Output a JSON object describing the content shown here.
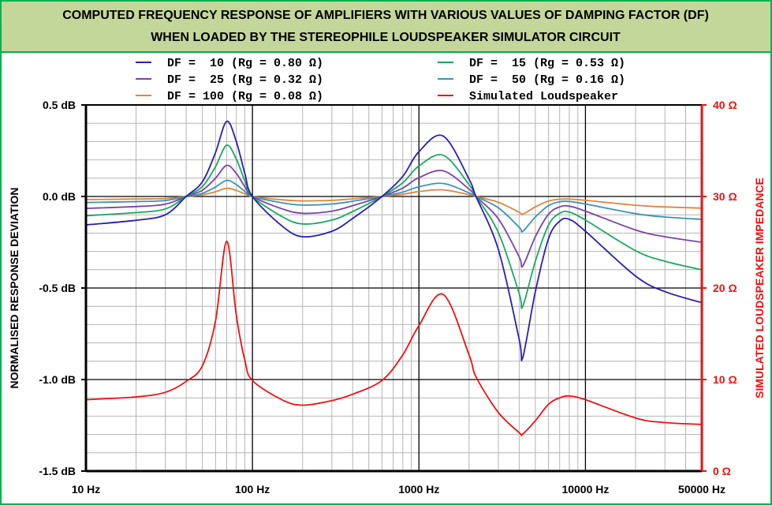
{
  "chart_data": {
    "type": "line",
    "title": [
      "COMPUTED FREQUENCY RESPONSE OF AMPLIFIERS WITH VARIOUS VALUES OF DAMPING FACTOR (DF)",
      "WHEN LOADED BY THE STEREOPHILE LOUDSPEAKER SIMULATOR CIRCUIT"
    ],
    "ylabel": "NORMALISED RESPONSE DEVIATION",
    "y2label": "SIMULATED LOUDSPEAKER IMPEDANCE",
    "xscale": "log",
    "xlim": [
      10,
      50000
    ],
    "ylim": [
      -1.5,
      0.5
    ],
    "y2lim": [
      0,
      40
    ],
    "grid": true,
    "legend_placement": "top",
    "x_ticks": [
      {
        "value": 10,
        "label": "10 Hz"
      },
      {
        "value": 100,
        "label": "100 Hz"
      },
      {
        "value": 1000,
        "label": "1000 Hz"
      },
      {
        "value": 10000,
        "label": "10000 Hz"
      },
      {
        "value": 50000,
        "label": "50000 Hz"
      }
    ],
    "y_ticks": [
      {
        "value": 0.5,
        "label": "0.5 dB"
      },
      {
        "value": 0.0,
        "label": "0.0 dB"
      },
      {
        "value": -0.5,
        "label": "-0.5 dB"
      },
      {
        "value": -1.0,
        "label": "-1.0 dB"
      },
      {
        "value": -1.5,
        "label": "-1.5 dB"
      }
    ],
    "y2_ticks": [
      {
        "value": 40,
        "label": "40 Ω"
      },
      {
        "value": 30,
        "label": "30 Ω"
      },
      {
        "value": 20,
        "label": "20 Ω"
      },
      {
        "value": 10,
        "label": "10 Ω"
      },
      {
        "value": 0,
        "label": "0 Ω"
      }
    ],
    "x": [
      10,
      20,
      30,
      40,
      50,
      60,
      70,
      80,
      90,
      100,
      150,
      200,
      300,
      400,
      600,
      800,
      1000,
      1400,
      2000,
      2200,
      3000,
      4000,
      4200,
      5000,
      6000,
      7000,
      8000,
      10000,
      20000,
      30000,
      50000
    ],
    "series": [
      {
        "name": "DF =  10 (Rg = 0.80 Ω)",
        "color": "#2a1fb0",
        "axis": "left",
        "values": [
          -0.155,
          -0.13,
          -0.1,
          0,
          0.08,
          0.24,
          0.41,
          0.3,
          0.125,
          0,
          -0.16,
          -0.22,
          -0.19,
          -0.12,
          0,
          0.11,
          0.245,
          0.33,
          0.095,
          0,
          -0.29,
          -0.78,
          -0.88,
          -0.52,
          -0.23,
          -0.135,
          -0.125,
          -0.19,
          -0.435,
          -0.52,
          -0.58
        ]
      },
      {
        "name": "DF =  15 (Rg = 0.53 Ω)",
        "color": "#1aa860",
        "axis": "left",
        "values": [
          -0.105,
          -0.088,
          -0.068,
          0,
          0.054,
          0.163,
          0.28,
          0.204,
          0.085,
          0,
          -0.109,
          -0.15,
          -0.129,
          -0.082,
          0,
          0.075,
          0.167,
          0.225,
          0.065,
          0,
          -0.197,
          -0.53,
          -0.6,
          -0.354,
          -0.156,
          -0.092,
          -0.085,
          -0.129,
          -0.296,
          -0.354,
          -0.4
        ]
      },
      {
        "name": "DF =  25 (Rg = 0.32 Ω)",
        "color": "#7a44a8",
        "axis": "left",
        "values": [
          -0.065,
          -0.055,
          -0.042,
          0,
          0.034,
          0.1,
          0.17,
          0.126,
          0.053,
          0,
          -0.067,
          -0.092,
          -0.08,
          -0.05,
          0,
          0.046,
          0.103,
          0.14,
          0.04,
          0,
          -0.122,
          -0.33,
          -0.38,
          -0.22,
          -0.097,
          -0.057,
          -0.053,
          -0.08,
          -0.183,
          -0.22,
          -0.25
        ]
      },
      {
        "name": "DF =  50 (Rg = 0.16 Ω)",
        "color": "#3a94b4",
        "axis": "left",
        "values": [
          -0.033,
          -0.028,
          -0.022,
          0,
          0.017,
          0.052,
          0.088,
          0.065,
          0.027,
          0,
          -0.034,
          -0.047,
          -0.041,
          -0.026,
          0,
          0.024,
          0.053,
          0.071,
          0.02,
          0,
          -0.062,
          -0.168,
          -0.19,
          -0.112,
          -0.05,
          -0.029,
          -0.027,
          -0.041,
          -0.094,
          -0.112,
          -0.125
        ]
      },
      {
        "name": "DF = 100 (Rg = 0.08 Ω)",
        "color": "#e0843c",
        "axis": "left",
        "values": [
          -0.017,
          -0.014,
          -0.011,
          0,
          0.009,
          0.026,
          0.045,
          0.033,
          0.014,
          0,
          -0.018,
          -0.024,
          -0.021,
          -0.013,
          0,
          0.012,
          0.027,
          0.036,
          0.01,
          0,
          -0.032,
          -0.086,
          -0.097,
          -0.057,
          -0.025,
          -0.015,
          -0.014,
          -0.021,
          -0.048,
          -0.057,
          -0.064
        ]
      },
      {
        "name": "Simulated Loudspeaker",
        "color": "#ee1111",
        "axis": "right",
        "values": [
          7.8,
          8.1,
          8.6,
          9.8,
          11.5,
          16.4,
          25.1,
          17.0,
          12.1,
          9.9,
          7.8,
          7.2,
          7.7,
          8.4,
          9.9,
          12.7,
          15.9,
          19.3,
          12.7,
          10.3,
          6.4,
          4.2,
          4.05,
          5.5,
          7.3,
          8.0,
          8.2,
          7.8,
          5.8,
          5.3,
          5.1
        ]
      }
    ]
  },
  "colors": {
    "title_band": "#c4d79b",
    "frame": "#00b050",
    "right_axis": "#ee1111"
  }
}
